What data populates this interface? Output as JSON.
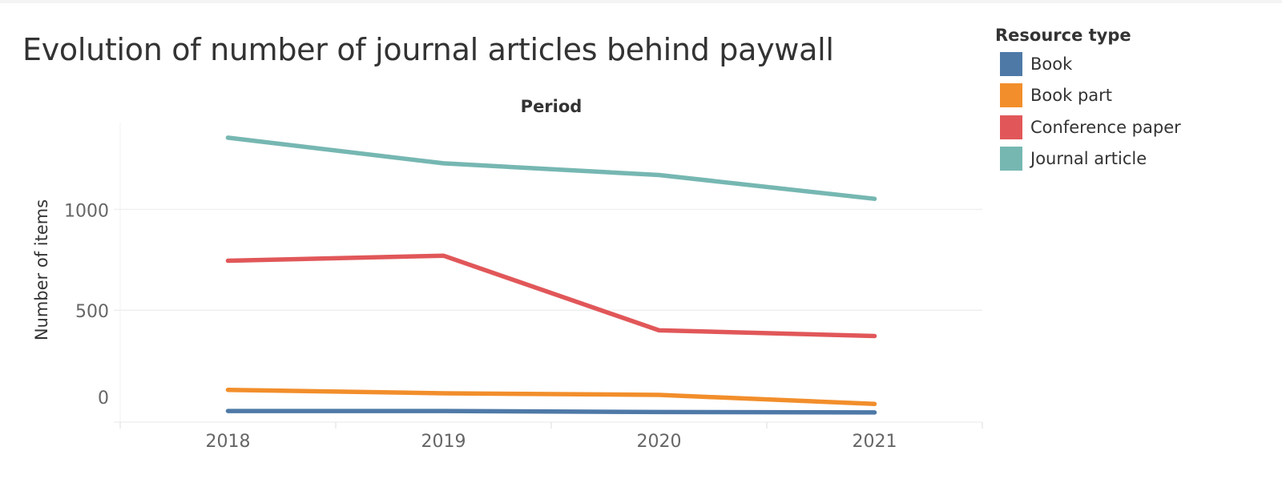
{
  "title": "Evolution of number of journal articles behind paywall",
  "legend": {
    "title": "Resource type",
    "items": [
      {
        "label": "Book",
        "color": "#4e79a7"
      },
      {
        "label": "Book part",
        "color": "#f28e2b"
      },
      {
        "label": "Conference paper",
        "color": "#e15759"
      },
      {
        "label": "Journal article",
        "color": "#76b7b2"
      }
    ]
  },
  "chart_data": {
    "type": "line",
    "title": "Evolution of number of journal articles behind paywall",
    "xlabel": "Period",
    "ylabel": "Number of items",
    "x": [
      "2018",
      "2019",
      "2020",
      "2021"
    ],
    "yticks": [
      0,
      500,
      1000
    ],
    "ylim": [
      -55,
      1430
    ],
    "grid": true,
    "legend_position": "right",
    "series": [
      {
        "name": "Book",
        "color": "#4e79a7",
        "values": [
          0,
          0,
          -5,
          -7
        ]
      },
      {
        "name": "Book part",
        "color": "#f28e2b",
        "values": [
          105,
          88,
          80,
          35
        ]
      },
      {
        "name": "Conference paper",
        "color": "#e15759",
        "values": [
          745,
          770,
          400,
          372
        ]
      },
      {
        "name": "Journal article",
        "color": "#76b7b2",
        "values": [
          1355,
          1228,
          1170,
          1052
        ]
      }
    ]
  }
}
